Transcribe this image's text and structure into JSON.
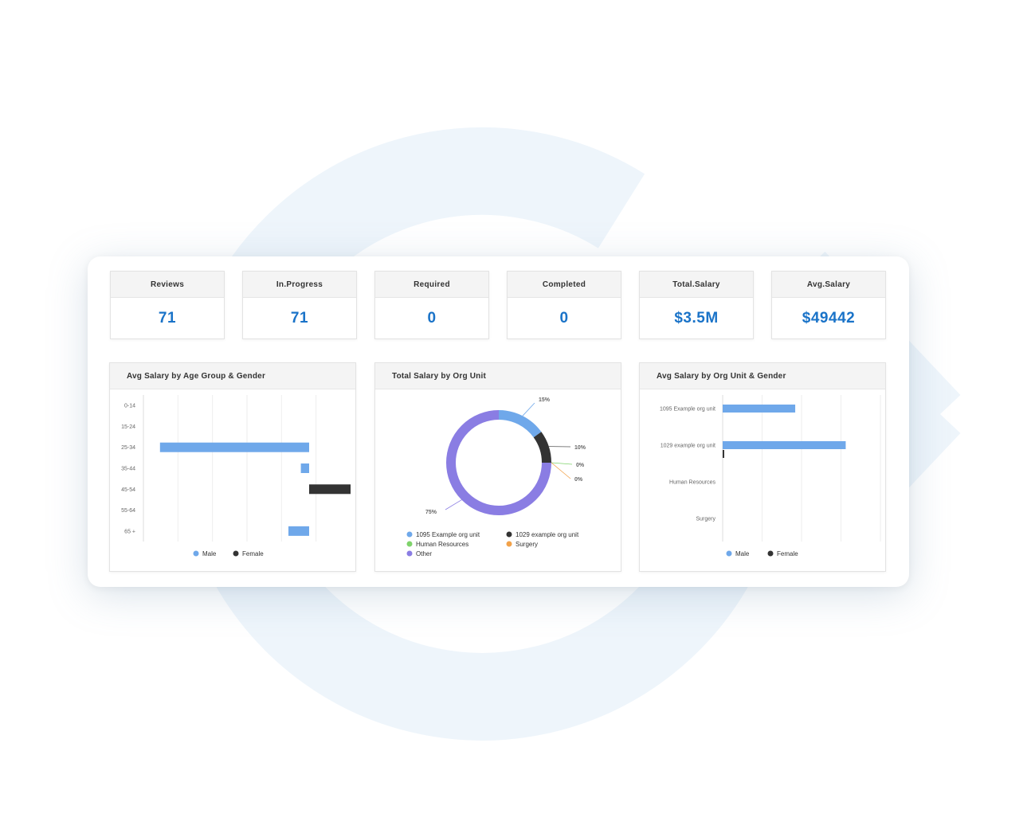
{
  "colors": {
    "accent": "#1a73c8",
    "male": "#6fa8ea",
    "female": "#333333",
    "org1095": "#6fa8ea",
    "org1029": "#333333",
    "hr": "#7fd36b",
    "surgery": "#f2a24a",
    "other": "#8a7de3"
  },
  "kpis": [
    {
      "label": "Reviews",
      "value": "71"
    },
    {
      "label": "In.Progress",
      "value": "71"
    },
    {
      "label": "Required",
      "value": "0"
    },
    {
      "label": "Completed",
      "value": "0"
    },
    {
      "label": "Total.Salary",
      "value": "$3.5M"
    },
    {
      "label": "Avg.Salary",
      "value": "$49442"
    }
  ],
  "charts": {
    "age": {
      "title": "Avg Salary by Age Group & Gender"
    },
    "org": {
      "title": "Total Salary by Org Unit"
    },
    "orggender": {
      "title": "Avg Salary by Org Unit & Gender"
    }
  },
  "chart_data": [
    {
      "type": "bar",
      "orientation": "horizontal",
      "title": "Avg Salary by Age Group & Gender",
      "categories": [
        "0-14",
        "15-24",
        "25-34",
        "35-44",
        "45-54",
        "55-64",
        "65 +"
      ],
      "series": [
        {
          "name": "Male",
          "values": [
            0,
            0,
            -36,
            -2,
            0,
            0,
            -5
          ]
        },
        {
          "name": "Female",
          "values": [
            0,
            0,
            0,
            0,
            10,
            0,
            0
          ]
        }
      ],
      "xlim": [
        -40,
        10
      ],
      "legend": "bottom",
      "grid": true
    },
    {
      "type": "pie",
      "title": "Total Salary by Org Unit",
      "donut": true,
      "slices": [
        {
          "name": "1095 Example org unit",
          "value": 15,
          "label": "15%"
        },
        {
          "name": "1029 example org unit",
          "value": 10,
          "label": "10%"
        },
        {
          "name": "Human Resources",
          "value": 0,
          "label": "0%"
        },
        {
          "name": "Surgery",
          "value": 0,
          "label": "0%"
        },
        {
          "name": "Other",
          "value": 75,
          "label": "75%"
        }
      ],
      "legend": "bottom"
    },
    {
      "type": "bar",
      "orientation": "horizontal",
      "title": "Avg Salary by Org Unit & Gender",
      "categories": [
        "1095 Example org unit",
        "1029 example org unit",
        "Human Resources",
        "Surgery"
      ],
      "series": [
        {
          "name": "Male",
          "values": [
            46,
            78,
            0,
            0
          ]
        },
        {
          "name": "Female",
          "values": [
            0,
            1,
            0,
            0
          ]
        }
      ],
      "xlim": [
        0,
        100
      ],
      "legend": "bottom",
      "grid": true
    }
  ]
}
